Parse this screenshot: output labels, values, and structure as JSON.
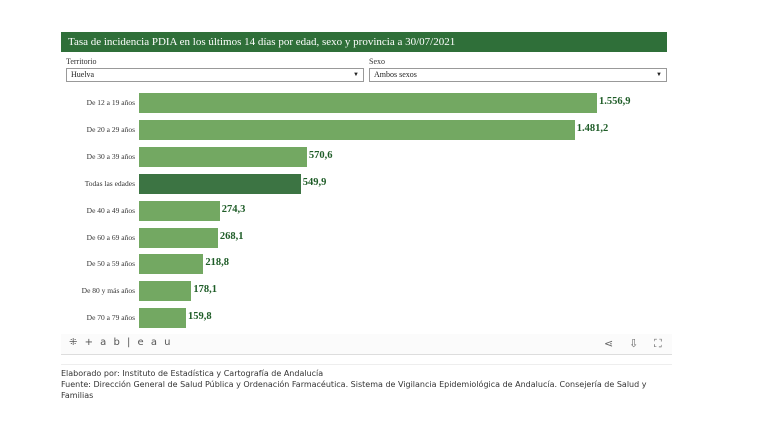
{
  "title": "Tasa de incidencia PDIA en los últimos 14 días por edad, sexo y provincia a 30/07/2021",
  "filters": {
    "territorio_label": "Territorio",
    "territorio_value": "Huelva",
    "sexo_label": "Sexo",
    "sexo_value": "Ambos sexos"
  },
  "chart_data": {
    "type": "bar",
    "orientation": "horizontal",
    "categories": [
      "De 12 a 19 años",
      "De 20 a 29 años",
      "De 30 a 39 años",
      "Todas las edades",
      "De 40 a 49 años",
      "De 60 a 69 años",
      "De 50 a 59 años",
      "De 80 y más años",
      "De 70 a 79 años"
    ],
    "values": [
      1556.9,
      1481.2,
      570.6,
      549.9,
      274.3,
      268.1,
      218.8,
      178.1,
      159.8
    ],
    "labels": [
      "1.556,9",
      "1.481,2",
      "570,6",
      "549,9",
      "274,3",
      "268,1",
      "218,8",
      "178,1",
      "159,8"
    ],
    "highlight": "Todas las edades",
    "colors": {
      "bar": "#73a862",
      "highlight": "#3c7443",
      "label": "#1f5d28"
    }
  },
  "toolbar": {
    "logo": "+ a b | e a u"
  },
  "footer": {
    "line1": "Elaborado por: Instituto de Estadística y Cartografía de Andalucía",
    "line2": "Fuente: Dirección General de Salud Pública y Ordenación Farmacéutica. Sistema de Vigilancia Epidemiológica de Andalucía. Consejería de Salud y Familias"
  }
}
